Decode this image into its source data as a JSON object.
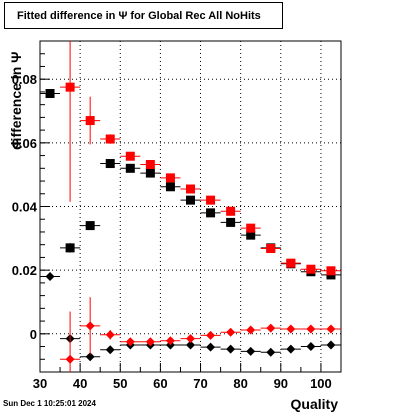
{
  "canvas": {
    "title": "Fitted difference in  Ψ  for Global Rec All NoHits",
    "timestamp": "Sun Dec  1 10:25:01 2024"
  },
  "chart_data": {
    "type": "scatter",
    "xlabel": "Quality",
    "ylabel": "difference in  Ψ",
    "xlim": [
      30,
      105
    ],
    "ylim": [
      -0.012,
      0.092
    ],
    "x_ticks": [
      30,
      40,
      50,
      60,
      70,
      80,
      90,
      100
    ],
    "x_ticks_minor": [
      35,
      45,
      55,
      65,
      75,
      85,
      95
    ],
    "y_ticks": [
      0,
      0.02,
      0.04,
      0.06,
      0.08
    ],
    "y_tick_labels": [
      "0",
      "0.02",
      "0.04",
      "0.06",
      "0.08"
    ],
    "grid": true,
    "colors": {
      "black": "#000000",
      "red": "#ff0000"
    },
    "series": [
      {
        "marker": "square",
        "color": "#000000",
        "points": [
          {
            "x": 32.5,
            "y": 0.0755,
            "yerr": 0
          },
          {
            "x": 37.5,
            "y": 0.027,
            "yerr": 0.0015
          },
          {
            "x": 42.5,
            "y": 0.034,
            "yerr": 0.0012
          },
          {
            "x": 47.5,
            "y": 0.0535,
            "yerr": 0.0006
          },
          {
            "x": 52.5,
            "y": 0.052,
            "yerr": 0.0005
          },
          {
            "x": 57.5,
            "y": 0.0505,
            "yerr": 0.0005
          },
          {
            "x": 62.5,
            "y": 0.0462,
            "yerr": 0.0004
          },
          {
            "x": 67.5,
            "y": 0.042,
            "yerr": 0.0004
          },
          {
            "x": 72.5,
            "y": 0.038,
            "yerr": 0.0003
          },
          {
            "x": 77.5,
            "y": 0.035,
            "yerr": 0.0003
          },
          {
            "x": 82.5,
            "y": 0.031,
            "yerr": 0.0003
          },
          {
            "x": 87.5,
            "y": 0.027,
            "yerr": 0.0003
          },
          {
            "x": 92.5,
            "y": 0.022,
            "yerr": 0.0003
          },
          {
            "x": 97.5,
            "y": 0.0195,
            "yerr": 0.0003
          },
          {
            "x": 102.5,
            "y": 0.0185,
            "yerr": 0.0003
          }
        ]
      },
      {
        "marker": "square",
        "color": "#ff0000",
        "points": [
          {
            "x": 37.5,
            "y": 0.0775,
            "yerr": 0.036
          },
          {
            "x": 42.5,
            "y": 0.067,
            "yerr": 0.0075
          },
          {
            "x": 47.5,
            "y": 0.0612,
            "yerr": 0.0015
          },
          {
            "x": 52.5,
            "y": 0.0558,
            "yerr": 0.0008
          },
          {
            "x": 57.5,
            "y": 0.0532,
            "yerr": 0.0006
          },
          {
            "x": 62.5,
            "y": 0.049,
            "yerr": 0.0005
          },
          {
            "x": 67.5,
            "y": 0.0455,
            "yerr": 0.0005
          },
          {
            "x": 72.5,
            "y": 0.042,
            "yerr": 0.0004
          },
          {
            "x": 77.5,
            "y": 0.0385,
            "yerr": 0.0004
          },
          {
            "x": 82.5,
            "y": 0.0332,
            "yerr": 0.0004
          },
          {
            "x": 87.5,
            "y": 0.0268,
            "yerr": 0.0004
          },
          {
            "x": 92.5,
            "y": 0.0222,
            "yerr": 0.0004
          },
          {
            "x": 97.5,
            "y": 0.0203,
            "yerr": 0.0004
          },
          {
            "x": 102.5,
            "y": 0.0198,
            "yerr": 0.0004
          }
        ]
      },
      {
        "marker": "diamond",
        "color": "#000000",
        "points": [
          {
            "x": 32.5,
            "y": 0.018,
            "yerr": 0
          },
          {
            "x": 37.5,
            "y": -0.0015,
            "yerr": 0.0012
          },
          {
            "x": 42.5,
            "y": -0.0072,
            "yerr": 0.0008
          },
          {
            "x": 47.5,
            "y": -0.005,
            "yerr": 0.0004
          },
          {
            "x": 52.5,
            "y": -0.0035,
            "yerr": 0.0003
          },
          {
            "x": 57.5,
            "y": -0.0035,
            "yerr": 0.0003
          },
          {
            "x": 62.5,
            "y": -0.0035,
            "yerr": 0.0003
          },
          {
            "x": 67.5,
            "y": -0.0035,
            "yerr": 0.0003
          },
          {
            "x": 72.5,
            "y": -0.0042,
            "yerr": 0.0003
          },
          {
            "x": 77.5,
            "y": -0.0048,
            "yerr": 0.0003
          },
          {
            "x": 82.5,
            "y": -0.0055,
            "yerr": 0.0003
          },
          {
            "x": 87.5,
            "y": -0.0058,
            "yerr": 0.0003
          },
          {
            "x": 92.5,
            "y": -0.0048,
            "yerr": 0.0003
          },
          {
            "x": 97.5,
            "y": -0.004,
            "yerr": 0.0003
          },
          {
            "x": 102.5,
            "y": -0.0035,
            "yerr": 0.0003
          }
        ]
      },
      {
        "marker": "diamond",
        "color": "#ff0000",
        "points": [
          {
            "x": 37.5,
            "y": -0.008,
            "yerr": 0.015
          },
          {
            "x": 42.5,
            "y": 0.0025,
            "yerr": 0.009
          },
          {
            "x": 47.5,
            "y": -0.0003,
            "yerr": 0.0015
          },
          {
            "x": 52.5,
            "y": -0.0025,
            "yerr": 0.0008
          },
          {
            "x": 57.5,
            "y": -0.0025,
            "yerr": 0.0006
          },
          {
            "x": 62.5,
            "y": -0.0022,
            "yerr": 0.0005
          },
          {
            "x": 67.5,
            "y": -0.0015,
            "yerr": 0.0005
          },
          {
            "x": 72.5,
            "y": -0.0005,
            "yerr": 0.0004
          },
          {
            "x": 77.5,
            "y": 0.0005,
            "yerr": 0.0004
          },
          {
            "x": 82.5,
            "y": 0.0012,
            "yerr": 0.0004
          },
          {
            "x": 87.5,
            "y": 0.0018,
            "yerr": 0.0004
          },
          {
            "x": 92.5,
            "y": 0.0015,
            "yerr": 0.0004
          },
          {
            "x": 97.5,
            "y": 0.0015,
            "yerr": 0.0004
          },
          {
            "x": 102.5,
            "y": 0.0015,
            "yerr": 0.0004
          }
        ]
      }
    ]
  }
}
